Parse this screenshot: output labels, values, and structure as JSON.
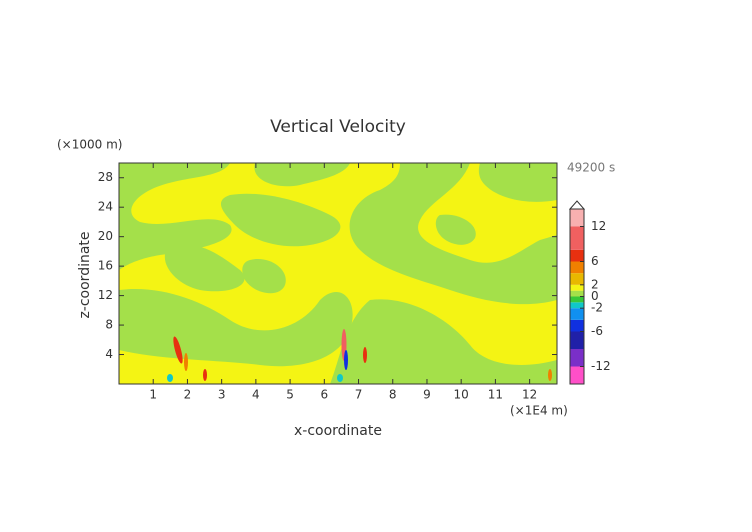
{
  "chart_data": {
    "type": "contour",
    "title": "Vertical Velocity",
    "x_label": "x-coordinate",
    "y_label": "z-coordinate",
    "x_unit": "(×1E4 m)",
    "y_unit": "(×1000 m)",
    "time_label": "49200 s",
    "xlim": [
      0,
      12.8
    ],
    "xticks": [
      1,
      2,
      3,
      4,
      5,
      6,
      7,
      8,
      9,
      10,
      11,
      12
    ],
    "ylim": [
      0,
      30
    ],
    "yticks": [
      4,
      8,
      12,
      16,
      20,
      24,
      28
    ],
    "colorbar": {
      "lim": [
        -15,
        15
      ],
      "ticks": [
        12,
        6,
        2,
        0,
        -2,
        -6,
        -12
      ],
      "levels": [
        -15,
        -12,
        -9,
        -6,
        -4,
        -2,
        -1,
        0,
        1,
        2,
        4,
        6,
        8,
        12,
        15
      ],
      "colors": [
        "#ff4fc8",
        "#7a2fc8",
        "#2020a8",
        "#1030e0",
        "#1090f0",
        "#10c8c8",
        "#38c838",
        "#a4e04a",
        "#f4f414",
        "#e8b800",
        "#f08000",
        "#e83010",
        "#f06060",
        "#f8b0b0"
      ]
    }
  }
}
